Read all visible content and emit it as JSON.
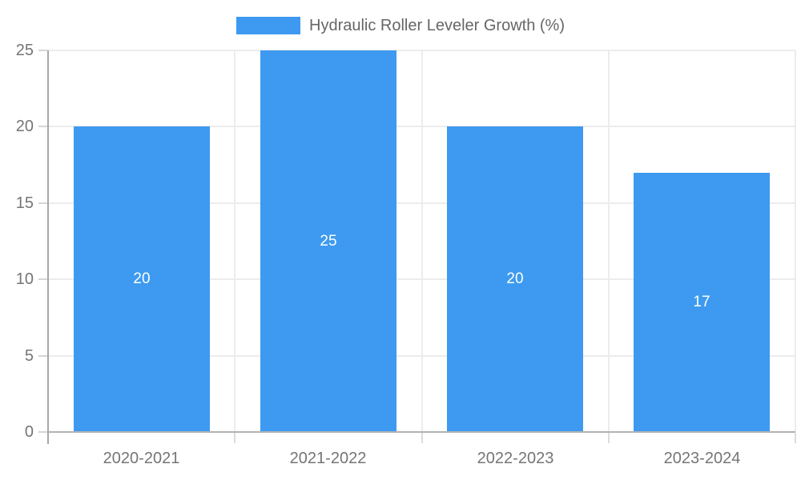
{
  "chart_data": {
    "type": "bar",
    "title": "Hydraulic Roller Leveler Growth (%)",
    "categories": [
      "2020-2021",
      "2021-2022",
      "2022-2023",
      "2023-2024"
    ],
    "values": [
      20,
      25,
      20,
      17
    ],
    "value_labels": [
      "20",
      "25",
      "20",
      "17"
    ],
    "yticks": [
      0,
      5,
      10,
      15,
      20,
      25
    ],
    "ylim": [
      0,
      25
    ],
    "xlabel": "",
    "ylabel": "",
    "grid": true,
    "legend_position": "top-center",
    "bar_color": "#3d9af0",
    "value_label_color": "#ffffff",
    "axis_text_color": "#757575",
    "legend_text_color": "#666666"
  }
}
